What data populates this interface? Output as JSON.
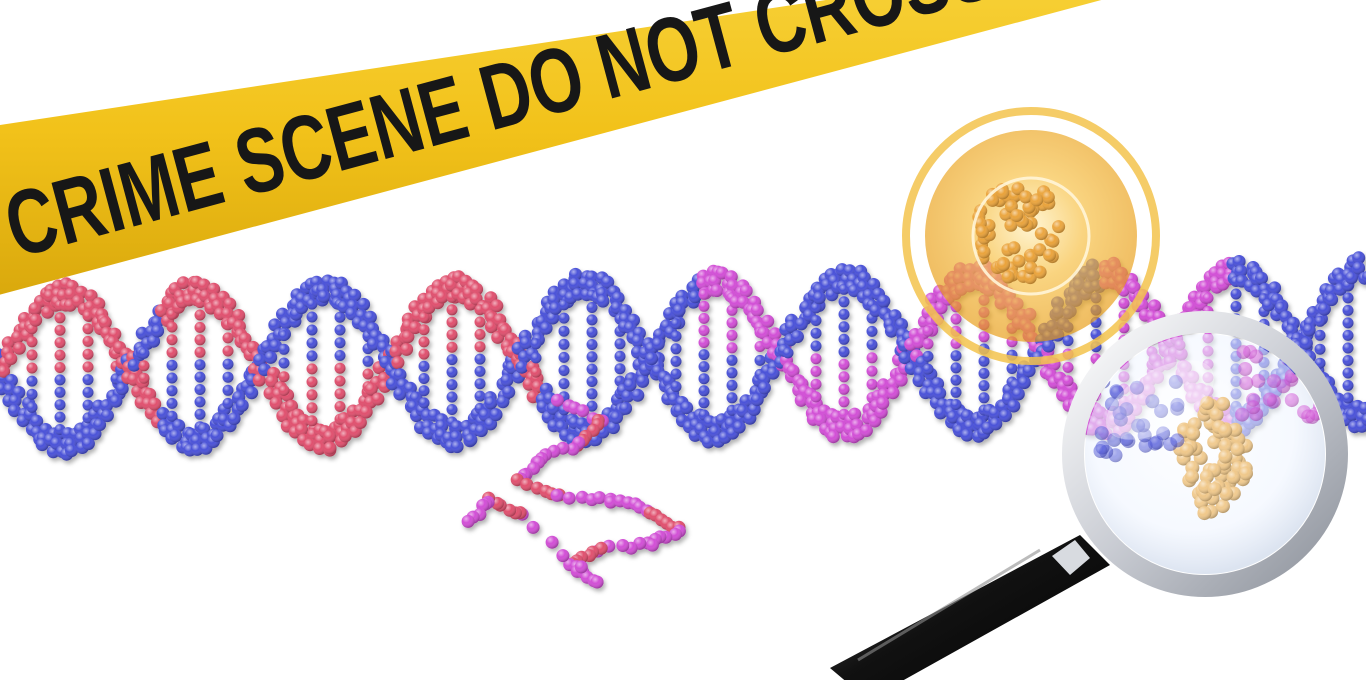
{
  "tape": {
    "text": "CRIME SCENE DO NOT CROSS",
    "color": "#f2c21a",
    "text_color": "#171717"
  },
  "dna": {
    "colors": {
      "blue": "#4a52d8",
      "red": "#e0506e",
      "magenta": "#d24fd6",
      "highlight": "#eaa23a",
      "highlight_in_lens": "#f0c88a"
    }
  },
  "icons": {
    "magnifier": "magnifying-glass-icon",
    "spotlight": "spotlight-lens-icon"
  }
}
